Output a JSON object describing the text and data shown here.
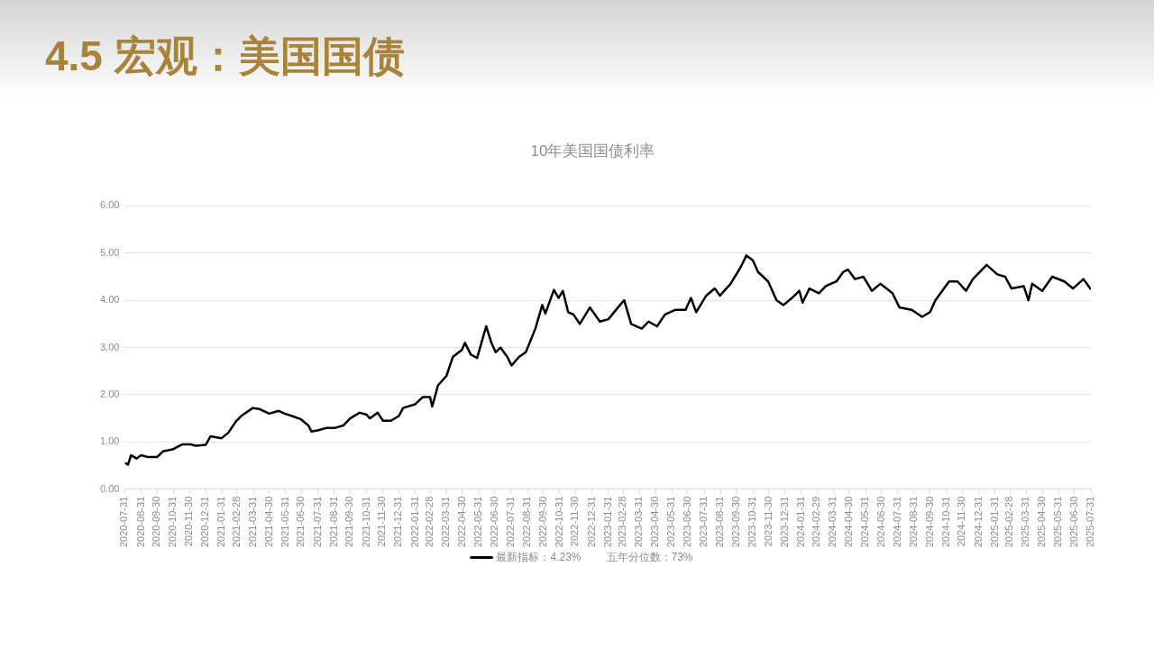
{
  "chart_data": {
    "type": "line",
    "title": "4.5 宏观：美国国债",
    "subtitle": "10年美国国债利率",
    "x": [
      "2020-07-31",
      "2020-08-02",
      "2020-08-06",
      "2020-08-12",
      "2020-08-22",
      "2020-08-31",
      "2020-09-13",
      "2020-09-30",
      "2020-10-11",
      "2020-10-31",
      "2020-11-08",
      "2020-11-17",
      "2020-12-03",
      "2020-12-12",
      "2020-12-31",
      "2021-01-09",
      "2021-01-30",
      "2021-02-12",
      "2021-02-27",
      "2021-03-08",
      "2021-03-30",
      "2021-04-11",
      "2021-04-30",
      "2021-05-18",
      "2021-05-29",
      "2021-06-12",
      "2021-06-29",
      "2021-07-13",
      "2021-07-19",
      "2021-08-01",
      "2021-08-17",
      "2021-09-02",
      "2021-09-17",
      "2021-09-30",
      "2021-10-18",
      "2021-10-31",
      "2021-11-06",
      "2021-11-21",
      "2021-12-01",
      "2021-12-16",
      "2021-12-31",
      "2022-01-08",
      "2022-01-31",
      "2022-02-14",
      "2022-02-28",
      "2022-03-04",
      "2022-03-15",
      "2022-03-31",
      "2022-04-12",
      "2022-04-29",
      "2022-05-05",
      "2022-05-16",
      "2022-05-28",
      "2022-06-14",
      "2022-06-24",
      "2022-07-02",
      "2022-07-11",
      "2022-07-24",
      "2022-08-01",
      "2022-08-15",
      "2022-08-28",
      "2022-09-15",
      "2022-09-28",
      "2022-10-04",
      "2022-10-20",
      "2022-10-29",
      "2022-11-06",
      "2022-11-16",
      "2022-11-26",
      "2022-12-08",
      "2022-12-27",
      "2023-01-15",
      "2023-01-31",
      "2023-02-22",
      "2023-03-02",
      "2023-03-15",
      "2023-04-04",
      "2023-04-17",
      "2023-05-03",
      "2023-05-18",
      "2023-06-07",
      "2023-06-26",
      "2023-07-06",
      "2023-07-16",
      "2023-08-04",
      "2023-08-20",
      "2023-08-30",
      "2023-09-19",
      "2023-10-08",
      "2023-10-19",
      "2023-10-31",
      "2023-11-10",
      "2023-11-29",
      "2023-12-15",
      "2023-12-28",
      "2024-01-13",
      "2024-01-27",
      "2024-02-02",
      "2024-02-15",
      "2024-03-04",
      "2024-03-17",
      "2024-04-06",
      "2024-04-19",
      "2024-04-28",
      "2024-05-11",
      "2024-05-27",
      "2024-06-12",
      "2024-06-28",
      "2024-07-21",
      "2024-08-03",
      "2024-08-26",
      "2024-09-15",
      "2024-09-30",
      "2024-10-10",
      "2024-11-05",
      "2024-11-21",
      "2024-12-07",
      "2024-12-20",
      "2025-01-15",
      "2025-02-04",
      "2025-02-19",
      "2025-03-03",
      "2025-03-26",
      "2025-04-04",
      "2025-04-11",
      "2025-04-30",
      "2025-05-19",
      "2025-06-11",
      "2025-06-27",
      "2025-07-17",
      "2025-07-31"
    ],
    "series": [
      {
        "name": "最新指标：4.23%",
        "color": "#000000",
        "values": [
          0.55,
          0.55,
          0.52,
          0.72,
          0.65,
          0.72,
          0.68,
          0.68,
          0.8,
          0.85,
          0.9,
          0.95,
          0.95,
          0.92,
          0.94,
          1.12,
          1.08,
          1.2,
          1.45,
          1.55,
          1.72,
          1.7,
          1.6,
          1.66,
          1.6,
          1.55,
          1.48,
          1.35,
          1.22,
          1.25,
          1.3,
          1.3,
          1.35,
          1.5,
          1.62,
          1.58,
          1.5,
          1.62,
          1.45,
          1.45,
          1.55,
          1.72,
          1.8,
          1.95,
          1.95,
          1.75,
          2.2,
          2.4,
          2.8,
          2.95,
          3.1,
          2.85,
          2.78,
          3.45,
          3.1,
          2.9,
          3.0,
          2.8,
          2.62,
          2.8,
          2.9,
          3.4,
          3.9,
          3.72,
          4.22,
          4.05,
          4.2,
          3.75,
          3.7,
          3.5,
          3.85,
          3.55,
          3.6,
          3.9,
          4.0,
          3.5,
          3.4,
          3.55,
          3.45,
          3.7,
          3.8,
          3.8,
          4.05,
          3.75,
          4.1,
          4.25,
          4.1,
          4.35,
          4.7,
          4.95,
          4.85,
          4.6,
          4.4,
          4.0,
          3.9,
          4.05,
          4.2,
          3.95,
          4.25,
          4.15,
          4.3,
          4.4,
          4.6,
          4.65,
          4.45,
          4.5,
          4.2,
          4.35,
          4.15,
          3.85,
          3.8,
          3.65,
          3.75,
          4.0,
          4.4,
          4.4,
          4.2,
          4.45,
          4.75,
          4.55,
          4.5,
          4.25,
          4.3,
          4.0,
          4.35,
          4.2,
          4.5,
          4.4,
          4.25,
          4.45,
          4.23
        ]
      }
    ],
    "annotations": [
      "五年分位数：73%"
    ],
    "xlim": [
      "2020-07-31",
      "2025-07-31"
    ],
    "xticks": [
      "2020-07-31",
      "2020-08-31",
      "2020-09-30",
      "2020-10-31",
      "2020-11-30",
      "2020-12-31",
      "2021-01-31",
      "2021-02-28",
      "2021-03-31",
      "2021-04-30",
      "2021-05-31",
      "2021-06-30",
      "2021-07-31",
      "2021-08-31",
      "2021-09-30",
      "2021-10-31",
      "2021-11-30",
      "2021-12-31",
      "2022-01-31",
      "2022-02-28",
      "2022-03-31",
      "2022-04-30",
      "2022-05-31",
      "2022-06-30",
      "2022-07-31",
      "2022-08-31",
      "2022-09-30",
      "2022-10-31",
      "2022-11-30",
      "2022-12-31",
      "2023-01-31",
      "2023-02-28",
      "2023-03-31",
      "2023-04-30",
      "2023-05-31",
      "2023-06-30",
      "2023-07-31",
      "2023-08-31",
      "2023-09-30",
      "2023-10-31",
      "2023-11-30",
      "2023-12-31",
      "2024-01-31",
      "2024-02-29",
      "2024-03-31",
      "2024-04-30",
      "2024-05-31",
      "2024-06-30",
      "2024-07-31",
      "2024-08-31",
      "2024-09-30",
      "2024-10-31",
      "2024-11-30",
      "2024-12-31",
      "2025-01-31",
      "2025-02-28",
      "2025-03-31",
      "2025-04-30",
      "2025-05-31",
      "2025-06-30",
      "2025-07-31"
    ],
    "ylim": [
      0,
      6
    ],
    "yticks": [
      {
        "value": 0,
        "label": "0.00"
      },
      {
        "value": 1,
        "label": "1.00"
      },
      {
        "value": 2,
        "label": "2.00"
      },
      {
        "value": 3,
        "label": "3.00"
      },
      {
        "value": 4,
        "label": "4.00"
      },
      {
        "value": 5,
        "label": "5.00"
      },
      {
        "value": 6,
        "label": "6.00"
      }
    ],
    "grid": "y",
    "legend": "bottom",
    "marker": "none",
    "line_style": "solid"
  }
}
